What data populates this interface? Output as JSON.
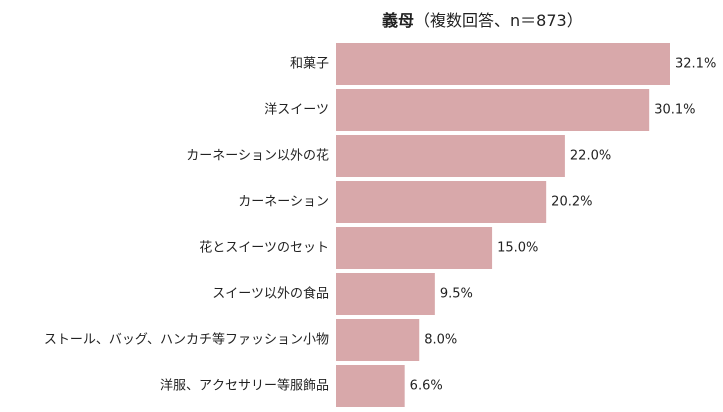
{
  "chart_data": {
    "type": "bar",
    "orientation": "horizontal",
    "title": {
      "bold": "義母",
      "rest": "（複数回答、n＝873）"
    },
    "categories": [
      "和菓子",
      "洋スイーツ",
      "カーネーション以外の花",
      "カーネーション",
      "花とスイーツのセット",
      "スイーツ以外の食品",
      "ストール、バッグ、ハンカチ等ファッション小物",
      "洋服、アクセサリー等服飾品"
    ],
    "values": [
      32.1,
      30.1,
      22.0,
      20.2,
      15.0,
      9.5,
      8.0,
      6.6
    ],
    "value_labels": [
      "32.1%",
      "30.1%",
      "22.0%",
      "20.2%",
      "15.0%",
      "9.5%",
      "8.0%",
      "6.6%"
    ],
    "xlim": [
      0,
      32.1
    ],
    "grid": false,
    "bar_color": "#d8a8aa"
  }
}
